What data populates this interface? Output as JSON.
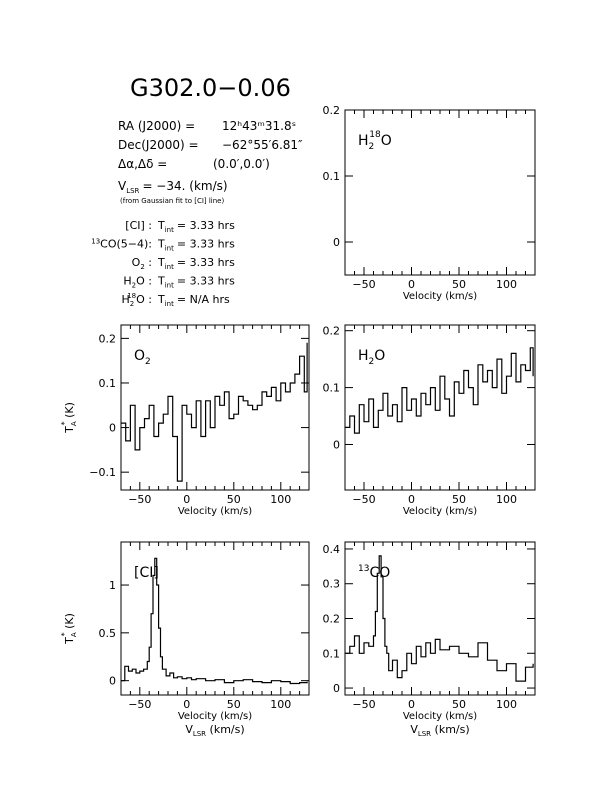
{
  "source": {
    "name": "G302.0−0.06",
    "ra_label": "RA (J2000) =",
    "ra_value": "12ʰ43ᵐ31.8ˢ",
    "dec_label": "Dec(J2000) =",
    "dec_value": "−62°55′6.81″",
    "offset_label": "Δα,Δδ =",
    "offset_value": "(0.0′,0.0′)",
    "vlsr_label": "V",
    "vlsr_sub": "LSR",
    "vlsr_value": "= −34. (km/s)",
    "vlsr_note": "(from Gaussian fit to [CI] line)"
  },
  "integrations": [
    {
      "pre": "",
      "base": "[CI]",
      "sup": "",
      "sub": "",
      "post": " :",
      "tint": "T",
      "tint_sub": "int",
      "value": "= 3.33 hrs"
    },
    {
      "pre": "13",
      "base": "CO(5−4):",
      "sup": "",
      "sub": "",
      "post": "",
      "tint": "T",
      "tint_sub": "int",
      "value": "= 3.33 hrs"
    },
    {
      "pre": "",
      "base": "O",
      "sup": "",
      "sub": "2",
      "post": " :",
      "tint": "T",
      "tint_sub": "int",
      "value": "= 3.33 hrs"
    },
    {
      "pre": "",
      "base": "H",
      "sup": "",
      "sub": "2",
      "post": "O :",
      "tint": "T",
      "tint_sub": "int",
      "value": "= 3.33 hrs"
    },
    {
      "pre": "",
      "base": "H",
      "sup": "18",
      "sub": "2",
      "post": "O :",
      "tint": "T",
      "tint_sub": "int",
      "value": "= N/A hrs"
    }
  ],
  "chart_data": [
    {
      "type": "line",
      "id": "h2-18o",
      "label": {
        "base": "H",
        "sub": "2",
        "sup": "18",
        "tail": "O"
      },
      "xlabel": "Velocity (km/s)",
      "ylabel": "",
      "xlim": [
        -70,
        130
      ],
      "ylim": [
        -0.05,
        0.2
      ],
      "xticks": [
        -50,
        0,
        50,
        100
      ],
      "yticks": [
        0,
        0.1,
        0.2
      ],
      "series": []
    },
    {
      "type": "line",
      "id": "o2",
      "label": {
        "base": "O",
        "sub": "2",
        "sup": "",
        "tail": ""
      },
      "xlabel": "Velocity (km/s)",
      "ylabel": "T_A^* (K)",
      "xlim": [
        -70,
        130
      ],
      "ylim": [
        -0.14,
        0.23
      ],
      "xticks": [
        -50,
        0,
        50,
        100
      ],
      "yticks": [
        -0.1,
        0,
        0.1,
        0.2
      ],
      "series": [
        {
          "x": [
            -70,
            -65,
            -60,
            -55,
            -50,
            -45,
            -40,
            -35,
            -30,
            -25,
            -20,
            -15,
            -10,
            -5,
            0,
            5,
            10,
            15,
            20,
            25,
            30,
            35,
            40,
            45,
            50,
            55,
            60,
            65,
            70,
            75,
            80,
            85,
            90,
            95,
            100,
            105,
            110,
            115,
            120,
            125,
            128
          ],
          "y": [
            0.01,
            -0.03,
            0.05,
            -0.05,
            0.0,
            0.02,
            0.05,
            -0.02,
            0.01,
            0.03,
            0.07,
            -0.02,
            -0.12,
            0.05,
            0.03,
            0.0,
            0.06,
            -0.02,
            0.06,
            0.0,
            0.07,
            0.05,
            0.08,
            0.02,
            0.03,
            0.07,
            0.06,
            0.05,
            0.04,
            0.05,
            0.08,
            0.07,
            0.09,
            0.06,
            0.1,
            0.08,
            0.1,
            0.12,
            0.16,
            0.08,
            0.19
          ]
        }
      ]
    },
    {
      "type": "line",
      "id": "h2o",
      "label": {
        "base": "H",
        "sub": "2",
        "sup": "",
        "tail": "O"
      },
      "xlabel": "Velocity (km/s)",
      "ylabel": "",
      "xlim": [
        -70,
        130
      ],
      "ylim": [
        -0.08,
        0.21
      ],
      "xticks": [
        -50,
        0,
        50,
        100
      ],
      "yticks": [
        0,
        0.1,
        0.2
      ],
      "series": [
        {
          "x": [
            -70,
            -65,
            -60,
            -55,
            -50,
            -45,
            -40,
            -35,
            -30,
            -25,
            -20,
            -15,
            -10,
            -5,
            0,
            5,
            10,
            15,
            20,
            25,
            30,
            35,
            40,
            45,
            50,
            55,
            60,
            65,
            70,
            75,
            80,
            85,
            90,
            95,
            100,
            105,
            110,
            115,
            120,
            125,
            128
          ],
          "y": [
            0.03,
            0.05,
            0.02,
            0.07,
            0.04,
            0.08,
            0.03,
            0.06,
            0.09,
            0.05,
            0.07,
            0.04,
            0.1,
            0.06,
            0.08,
            0.05,
            0.09,
            0.07,
            0.1,
            0.06,
            0.12,
            0.08,
            0.05,
            0.11,
            0.09,
            0.13,
            0.1,
            0.07,
            0.14,
            0.11,
            0.13,
            0.1,
            0.15,
            0.09,
            0.12,
            0.16,
            0.11,
            0.14,
            0.13,
            0.17,
            0.12
          ]
        }
      ]
    },
    {
      "type": "line",
      "id": "ci",
      "label": {
        "base": "[CI]",
        "sub": "",
        "sup": "",
        "tail": ""
      },
      "xlabel": "Velocity (km/s)",
      "ylabel": "T_A^* (K)",
      "x_sub_label": "V_LSR (km/s)",
      "xlim": [
        -70,
        130
      ],
      "ylim": [
        -0.15,
        1.45
      ],
      "xticks": [
        -50,
        0,
        50,
        100
      ],
      "yticks": [
        0,
        0.5,
        1
      ],
      "series": [
        {
          "x": [
            -70,
            -66,
            -62,
            -58,
            -54,
            -50,
            -46,
            -42,
            -40,
            -38,
            -36,
            -34,
            -32,
            -30,
            -28,
            -26,
            -22,
            -18,
            -14,
            -10,
            -5,
            0,
            5,
            10,
            20,
            30,
            40,
            50,
            60,
            70,
            80,
            90,
            100,
            110,
            120,
            128
          ],
          "y": [
            0.0,
            0.15,
            0.1,
            0.12,
            0.08,
            0.1,
            0.12,
            0.2,
            0.35,
            0.7,
            1.1,
            1.28,
            1.0,
            0.55,
            0.25,
            0.12,
            0.05,
            0.08,
            0.03,
            0.04,
            0.02,
            0.03,
            0.01,
            0.02,
            0.0,
            0.01,
            -0.02,
            0.0,
            0.01,
            -0.01,
            -0.02,
            0.0,
            -0.01,
            -0.03,
            -0.02,
            -0.01
          ]
        }
      ]
    },
    {
      "type": "line",
      "id": "13co",
      "label": {
        "base": "CO",
        "pre": "13",
        "sub": "",
        "sup": "",
        "tail": ""
      },
      "xlabel": "Velocity (km/s)",
      "ylabel": "",
      "x_sub_label": "V_LSR (km/s)",
      "xlim": [
        -70,
        130
      ],
      "ylim": [
        -0.02,
        0.42
      ],
      "xticks": [
        -50,
        0,
        50,
        100
      ],
      "yticks": [
        0,
        0.1,
        0.2,
        0.3,
        0.4
      ],
      "series": [
        {
          "x": [
            -70,
            -65,
            -60,
            -55,
            -50,
            -45,
            -40,
            -38,
            -36,
            -34,
            -32,
            -30,
            -28,
            -26,
            -24,
            -20,
            -15,
            -10,
            -5,
            0,
            5,
            10,
            15,
            20,
            25,
            30,
            40,
            50,
            60,
            70,
            80,
            90,
            100,
            110,
            120,
            128
          ],
          "y": [
            0.1,
            0.12,
            0.15,
            0.1,
            0.13,
            0.12,
            0.15,
            0.22,
            0.33,
            0.38,
            0.32,
            0.2,
            0.12,
            0.1,
            0.05,
            0.08,
            0.03,
            0.05,
            0.1,
            0.07,
            0.12,
            0.09,
            0.13,
            0.1,
            0.14,
            0.11,
            0.12,
            0.1,
            0.09,
            0.13,
            0.08,
            0.05,
            0.07,
            0.02,
            0.06,
            0.07
          ]
        }
      ]
    }
  ]
}
